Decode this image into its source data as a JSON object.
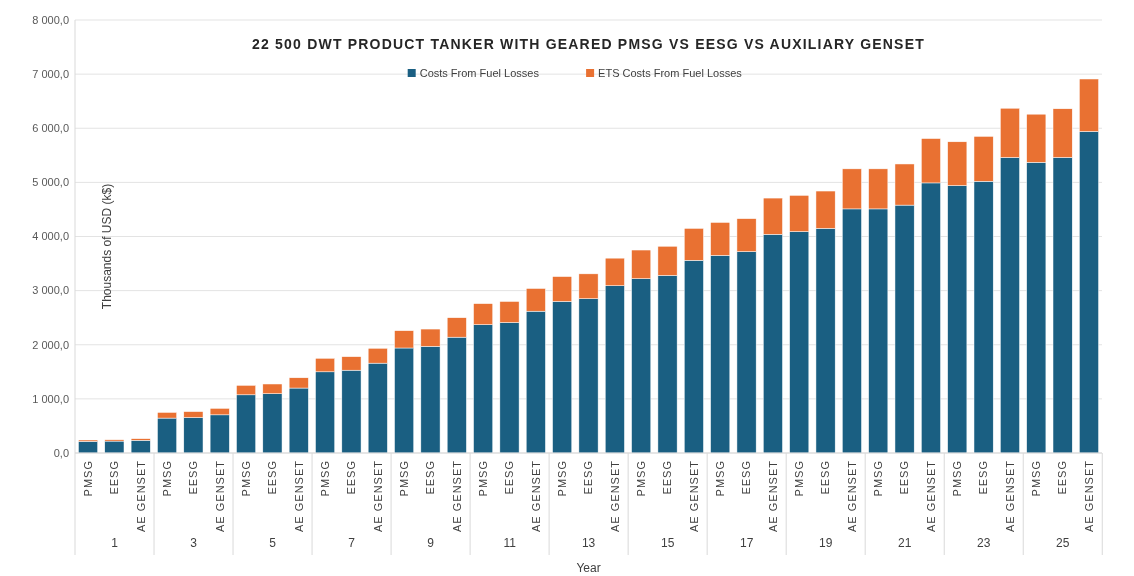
{
  "chart_data": {
    "type": "bar",
    "stacked": true,
    "title": "22 500 DWT PRODUCT TANKER WITH GEARED PMSG VS EESG VS AUXILIARY GENSET",
    "xlabel": "Year",
    "ylabel": "Thousands of USD (k$)",
    "categories": [
      "PMSG",
      "EESG",
      "AE GENSET",
      "PMSG",
      "EESG",
      "AE GENSET",
      "PMSG",
      "EESG",
      "AE GENSET",
      "PMSG",
      "EESG",
      "AE GENSET",
      "PMSG",
      "EESG",
      "AE GENSET",
      "PMSG",
      "EESG",
      "AE GENSET",
      "PMSG",
      "EESG",
      "AE GENSET",
      "PMSG",
      "EESG",
      "AE GENSET",
      "PMSG",
      "EESG",
      "AE GENSET",
      "PMSG",
      "EESG",
      "AE GENSET",
      "PMSG",
      "EESG",
      "AE GENSET",
      "PMSG",
      "EESG",
      "AE GENSET",
      "PMSG",
      "EESG",
      "AE GENSET"
    ],
    "annotations": [
      "1",
      "3",
      "5",
      "7",
      "9",
      "11",
      "13",
      "15",
      "17",
      "19",
      "21",
      "23",
      "25"
    ],
    "series": [
      {
        "name": "Costs From Fuel Losses",
        "color": "#1a5f82",
        "values": [
          215,
          220,
          235,
          645,
          655,
          705,
          1075,
          1095,
          1200,
          1500,
          1530,
          1660,
          1940,
          1970,
          2140,
          2370,
          2410,
          2620,
          2800,
          2850,
          3090,
          3220,
          3280,
          3560,
          3650,
          3720,
          4040,
          4090,
          4150,
          4510,
          4510,
          4580,
          4990,
          4940,
          5020,
          5460,
          5370,
          5460,
          5940
        ]
      },
      {
        "name": "ETS Costs From Fuel Losses",
        "color": "#e97132",
        "values": [
          25,
          25,
          30,
          105,
          110,
          120,
          175,
          180,
          190,
          250,
          250,
          275,
          320,
          320,
          360,
          390,
          390,
          420,
          460,
          460,
          510,
          530,
          540,
          590,
          610,
          610,
          670,
          670,
          690,
          740,
          740,
          760,
          820,
          810,
          830,
          910,
          890,
          900,
          970
        ]
      }
    ],
    "ylim": [
      0,
      8000
    ],
    "yticks": [
      {
        "value": 0,
        "label": "0,0"
      },
      {
        "value": 1000,
        "label": "1 000,0"
      },
      {
        "value": 2000,
        "label": "2 000,0"
      },
      {
        "value": 3000,
        "label": "3 000,0"
      },
      {
        "value": 4000,
        "label": "4 000,0"
      },
      {
        "value": 5000,
        "label": "5 000,0"
      },
      {
        "value": 6000,
        "label": "6 000,0"
      },
      {
        "value": 7000,
        "label": "7 000,0"
      },
      {
        "value": 8000,
        "label": "8 000,0"
      }
    ],
    "grid": "y",
    "legend": "top"
  }
}
